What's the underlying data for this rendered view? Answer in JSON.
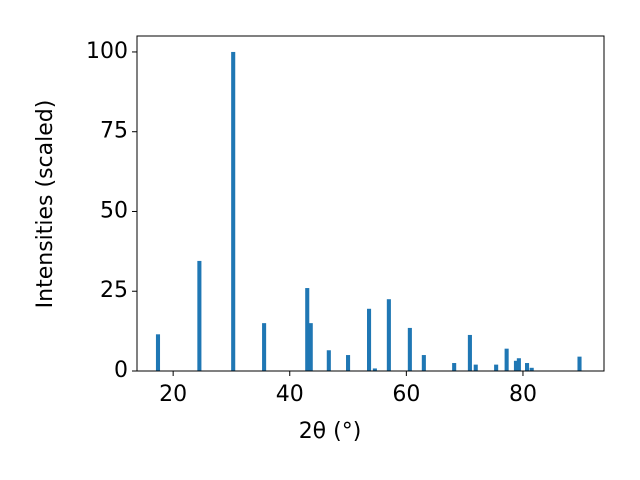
{
  "chart_data": {
    "type": "bar",
    "xlabel": "2θ (°)",
    "ylabel": "Intensities (scaled)",
    "x": [
      17.4,
      24.5,
      30.3,
      35.6,
      43.0,
      43.6,
      46.7,
      50.0,
      53.6,
      54.6,
      57.0,
      60.6,
      63.0,
      68.2,
      70.9,
      71.9,
      75.4,
      77.2,
      78.8,
      79.3,
      80.7,
      81.5,
      89.7
    ],
    "values": [
      11.5,
      34.5,
      100,
      15,
      26,
      15,
      6.5,
      5,
      19.5,
      0.8,
      22.5,
      13.5,
      5,
      2.5,
      11.3,
      2,
      2,
      7,
      3.2,
      4,
      2.5,
      1,
      4.5
    ],
    "bar_width": 0.7,
    "color": "#1f77b4",
    "xlim": [
      13.8,
      93.9
    ],
    "ylim": [
      0,
      105
    ],
    "xticks": [
      20,
      40,
      60,
      80
    ],
    "yticks": [
      0,
      25,
      50,
      75,
      100
    ]
  }
}
